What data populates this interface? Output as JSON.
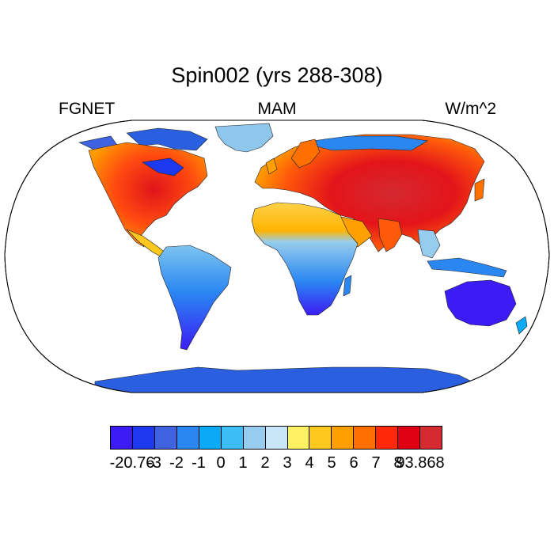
{
  "title": "Spin002 (yrs 288-308)",
  "subtitle_left": "FGNET",
  "subtitle_center": "MAM",
  "subtitle_right": "W/m^2",
  "colorbar": {
    "colors": [
      "#3c1cf5",
      "#1d39f0",
      "#3f63e0",
      "#2a87f2",
      "#0aaaf7",
      "#3cbdf5",
      "#96cdee",
      "#c8e6f8",
      "#fff064",
      "#ffc81e",
      "#ffa000",
      "#ff7000",
      "#ff2808",
      "#df0012",
      "#d42a30"
    ],
    "labels": [
      "-20.76",
      "-3",
      "-2",
      "-1",
      "0",
      "1",
      "2",
      "3",
      "4",
      "5",
      "6",
      "7",
      "8",
      "93.868"
    ]
  }
}
